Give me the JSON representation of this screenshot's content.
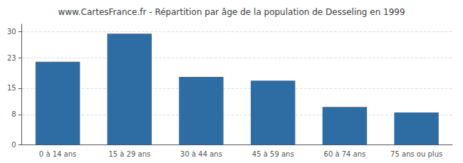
{
  "chart_data": {
    "type": "bar",
    "title": "www.CartesFrance.fr - Répartition par âge de la population de Desseling en 1999",
    "categories": [
      "0 à 14 ans",
      "15 à 29 ans",
      "30 à 44 ans",
      "45 à 59 ans",
      "60 à 74 ans",
      "75 ans ou plus"
    ],
    "values": [
      22,
      29.5,
      18,
      17,
      10,
      8.5
    ],
    "color": "#2e6da4",
    "ylim": [
      0,
      32
    ],
    "yticks": [
      0,
      8,
      15,
      23,
      30
    ],
    "grid": true
  }
}
